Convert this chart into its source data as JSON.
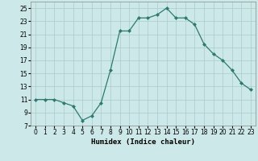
{
  "x": [
    0,
    1,
    2,
    3,
    4,
    5,
    6,
    7,
    8,
    9,
    10,
    11,
    12,
    13,
    14,
    15,
    16,
    17,
    18,
    19,
    20,
    21,
    22,
    23
  ],
  "y": [
    11.0,
    11.0,
    11.0,
    10.5,
    10.0,
    7.8,
    8.5,
    10.5,
    15.5,
    21.5,
    21.5,
    23.5,
    23.5,
    24.0,
    25.0,
    23.5,
    23.5,
    22.5,
    19.5,
    18.0,
    17.0,
    15.5,
    13.5,
    12.5
  ],
  "line_color": "#2d7a6e",
  "marker": "D",
  "marker_size": 2,
  "bg_color": "#cce8e8",
  "grid_color": "#aacccc",
  "xlabel": "Humidex (Indice chaleur)",
  "ylim": [
    7,
    26
  ],
  "xlim": [
    -0.5,
    23.5
  ],
  "yticks": [
    7,
    9,
    11,
    13,
    15,
    17,
    19,
    21,
    23,
    25
  ],
  "xticks": [
    0,
    1,
    2,
    3,
    4,
    5,
    6,
    7,
    8,
    9,
    10,
    11,
    12,
    13,
    14,
    15,
    16,
    17,
    18,
    19,
    20,
    21,
    22,
    23
  ],
  "label_fontsize": 6.5,
  "tick_fontsize": 5.5
}
